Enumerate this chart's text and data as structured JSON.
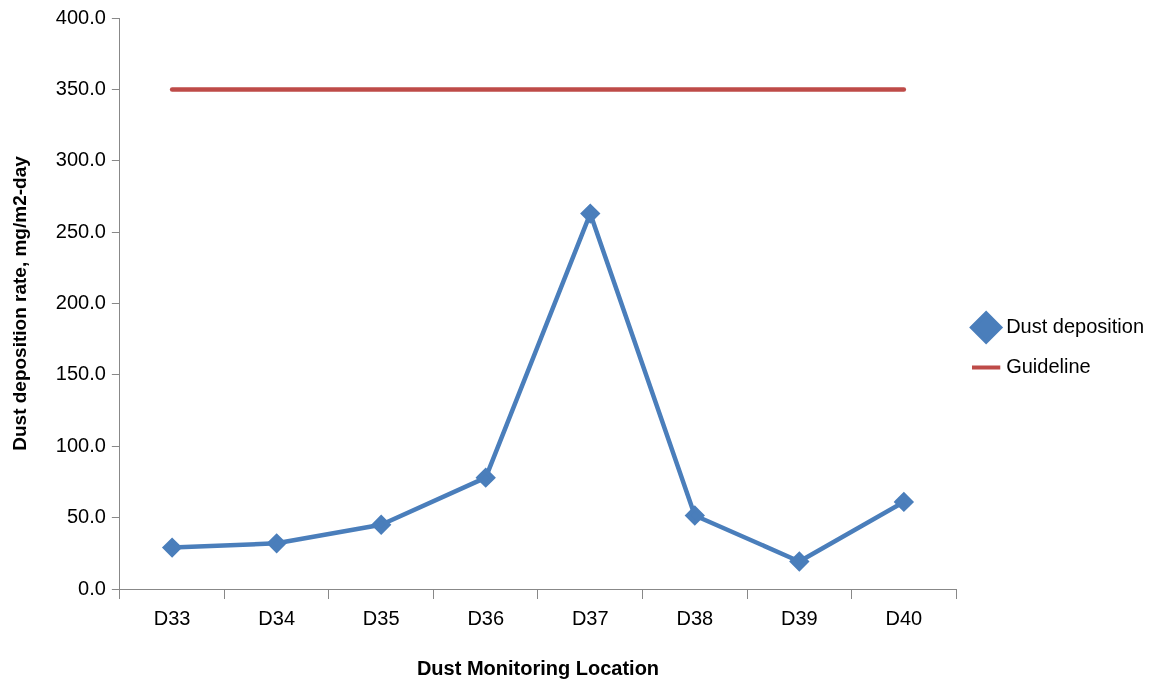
{
  "chart_data": {
    "type": "line",
    "xlabel": "Dust Monitoring Location",
    "ylabel": "Dust deposition rate, mg/m2-day",
    "categories": [
      "D33",
      "D34",
      "D35",
      "D36",
      "D37",
      "D38",
      "D39",
      "D40"
    ],
    "series": [
      {
        "name": "Dust deposition",
        "color": "#4a7ebb",
        "marker": "diamond",
        "values": [
          29,
          32,
          45,
          78,
          263,
          51.5,
          19.3,
          61
        ]
      },
      {
        "name": "Guideline",
        "color": "#be4b48",
        "marker": "none",
        "values": [
          350,
          350,
          350,
          350,
          350,
          350,
          350,
          350
        ]
      }
    ],
    "ylim": [
      0,
      400
    ],
    "yticks": [
      {
        "value": 0,
        "label": "0.0"
      },
      {
        "value": 50,
        "label": "50.0"
      },
      {
        "value": 100,
        "label": "100.0"
      },
      {
        "value": 150,
        "label": "150.0"
      },
      {
        "value": 200,
        "label": "200.0"
      },
      {
        "value": 250,
        "label": "250.0"
      },
      {
        "value": 300,
        "label": "300.0"
      },
      {
        "value": 350,
        "label": "350.0"
      },
      {
        "value": 400,
        "label": "400.0"
      }
    ],
    "grid": false,
    "legend": "right"
  }
}
